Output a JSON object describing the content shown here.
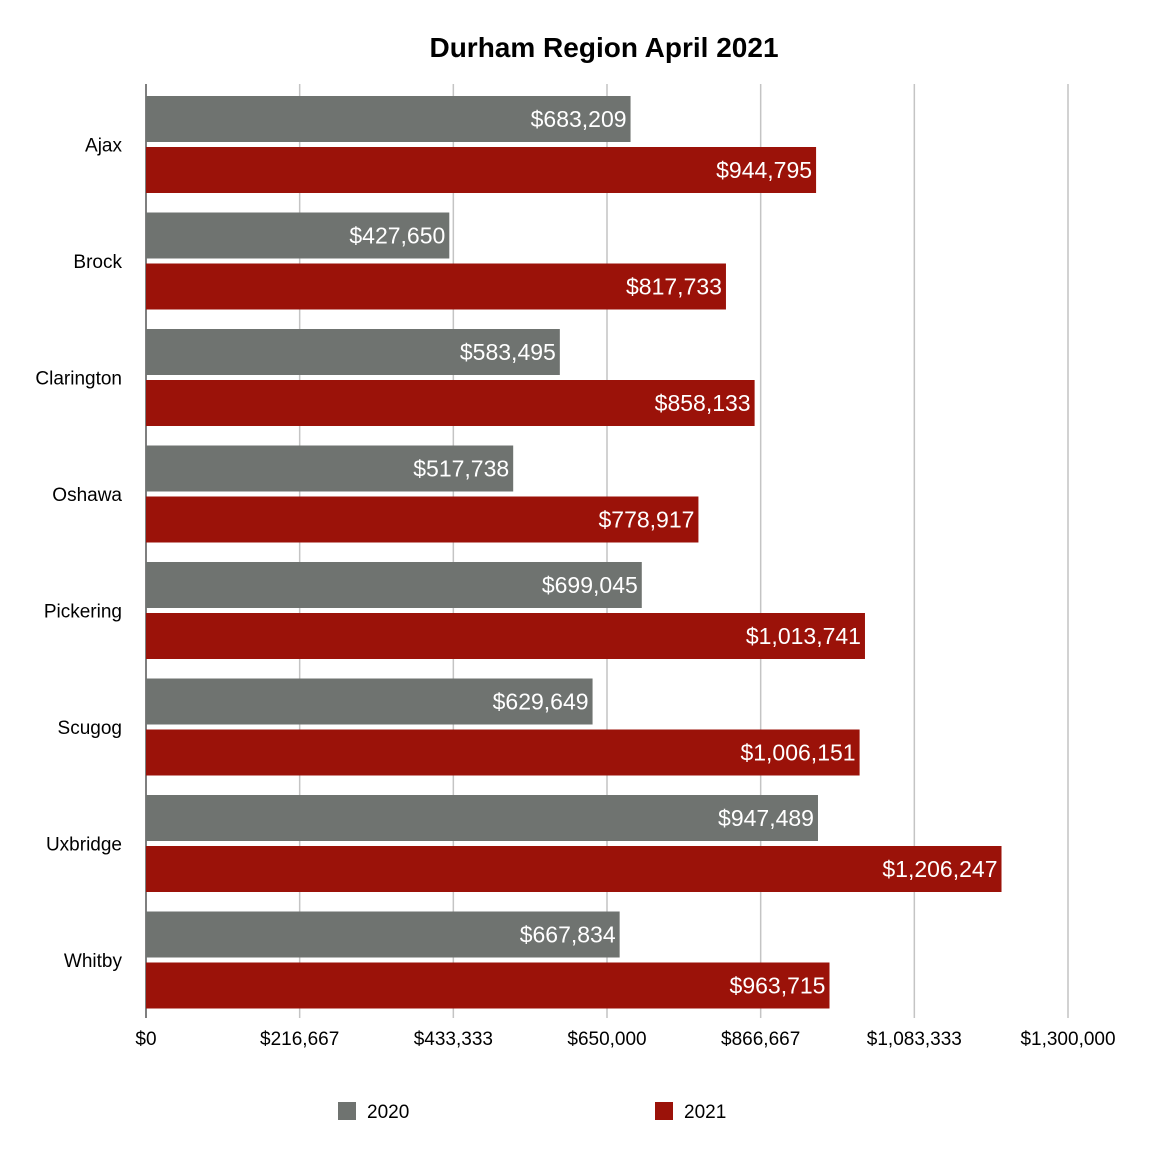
{
  "chart_data": {
    "type": "bar",
    "orientation": "horizontal",
    "title": "Durham Region April 2021",
    "xlabel": "",
    "ylabel": "",
    "categories": [
      "Ajax",
      "Brock",
      "Clarington",
      "Oshawa",
      "Pickering",
      "Scugog",
      "Uxbridge",
      "Whitby"
    ],
    "series": [
      {
        "name": "2020",
        "color": "#6f7370",
        "values": [
          683209,
          427650,
          583495,
          517738,
          699045,
          629649,
          947489,
          667834
        ],
        "labels": [
          "$683,209",
          "$427,650",
          "$583,495",
          "$517,738",
          "$699,045",
          "$629,649",
          "$947,489",
          "$667,834"
        ]
      },
      {
        "name": "2021",
        "color": "#9b1209",
        "values": [
          944795,
          817733,
          858133,
          778917,
          1013741,
          1006151,
          1206247,
          963715
        ],
        "labels": [
          "$944,795",
          "$817,733",
          "$858,133",
          "$778,917",
          "$1,013,741",
          "$1,006,151",
          "$1,206,247",
          "$963,715"
        ]
      }
    ],
    "xlim": [
      0,
      1300000
    ],
    "ticks": [
      0,
      216667,
      433333,
      650000,
      866667,
      1083333,
      1300000
    ],
    "tick_labels": [
      "$0",
      "$216,667",
      "$433,333",
      "$650,000",
      "$866,667",
      "$1,083,333",
      "$1,300,000"
    ],
    "grid": true,
    "grid_color": "#c4c4c4",
    "legend_position": "bottom"
  }
}
